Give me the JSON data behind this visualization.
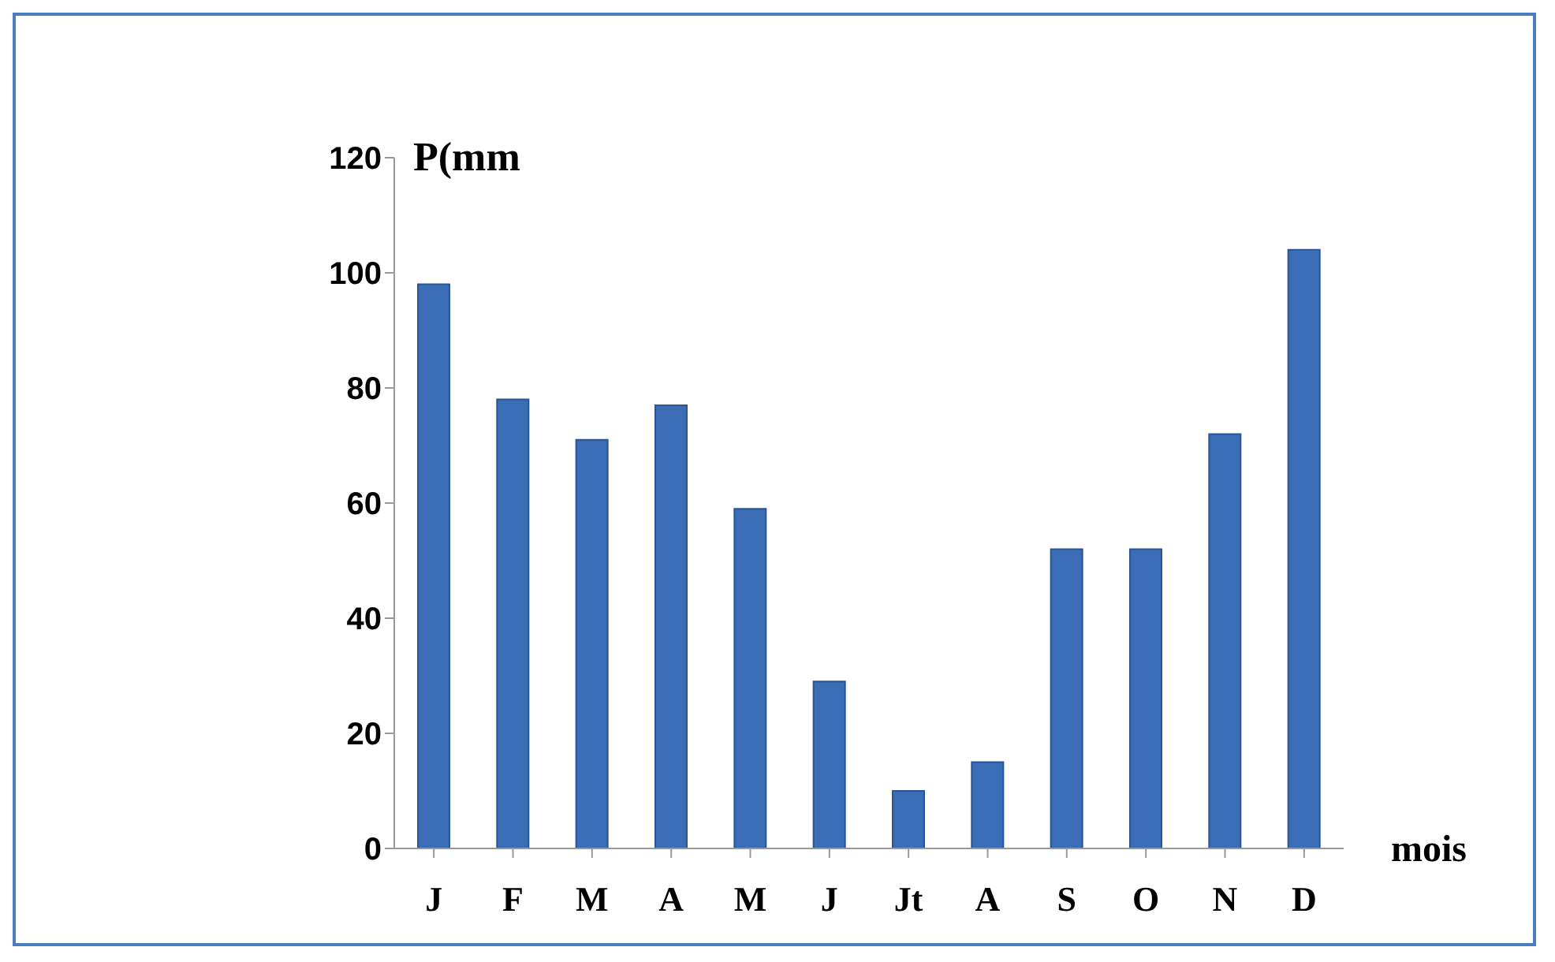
{
  "chart_data": {
    "type": "bar",
    "ylabel": "P(mm",
    "xlabel": "mois",
    "categories": [
      "J",
      "F",
      "M",
      "A",
      "M",
      "J",
      "Jt",
      "A",
      "S",
      "O",
      "N",
      "D"
    ],
    "values": [
      98,
      78,
      71,
      77,
      59,
      29,
      10,
      15,
      52,
      52,
      72,
      104
    ],
    "color": "#3a6db5",
    "ylim": [
      0,
      120
    ],
    "yticks": [
      0,
      20,
      40,
      60,
      80,
      100,
      120
    ],
    "legend": false
  }
}
